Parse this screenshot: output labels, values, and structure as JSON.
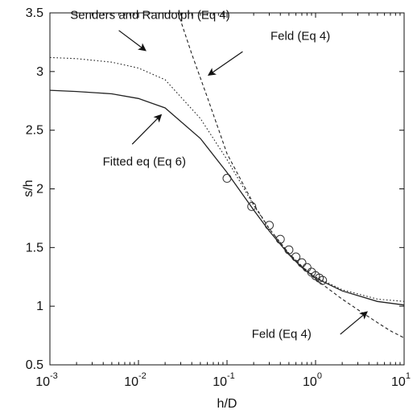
{
  "chart_data": {
    "type": "line",
    "xlabel": "h/D",
    "ylabel": "s/h",
    "xscale": "log",
    "xlim": [
      0.001,
      10
    ],
    "ylim": [
      0.5,
      3.5
    ],
    "grid": false,
    "legend": "none",
    "x_ticks": [
      {
        "value": 0.001,
        "base": "10",
        "exp": "-3"
      },
      {
        "value": 0.01,
        "base": "10",
        "exp": "-2"
      },
      {
        "value": 0.1,
        "base": "10",
        "exp": "-1"
      },
      {
        "value": 1,
        "base": "10",
        "exp": "0"
      },
      {
        "value": 10,
        "base": "10",
        "exp": "1"
      }
    ],
    "y_ticks": [
      "0.5",
      "1",
      "1.5",
      "2",
      "2.5",
      "3",
      "3.5"
    ],
    "series": [
      {
        "key": "senders",
        "style": "dotted",
        "x": [
          0.001,
          0.002,
          0.005,
          0.01,
          0.02,
          0.05,
          0.1,
          0.2,
          0.3,
          0.5,
          0.7,
          1,
          2,
          5,
          10
        ],
        "y": [
          3.12,
          3.11,
          3.08,
          3.03,
          2.93,
          2.6,
          2.25,
          1.86,
          1.66,
          1.45,
          1.34,
          1.25,
          1.14,
          1.06,
          1.04
        ]
      },
      {
        "key": "fitted",
        "style": "solid",
        "x": [
          0.001,
          0.002,
          0.005,
          0.01,
          0.02,
          0.05,
          0.1,
          0.2,
          0.3,
          0.5,
          0.7,
          1,
          2,
          5,
          10
        ],
        "y": [
          2.84,
          2.83,
          2.81,
          2.77,
          2.69,
          2.43,
          2.14,
          1.82,
          1.64,
          1.44,
          1.33,
          1.24,
          1.13,
          1.04,
          1.01
        ]
      },
      {
        "key": "feld",
        "style": "dashed",
        "x": [
          0.028,
          0.04,
          0.06,
          0.1,
          0.2,
          0.3,
          0.5,
          0.7,
          1,
          1.5,
          2,
          3,
          5,
          7,
          10
        ],
        "y": [
          3.5,
          3.15,
          2.78,
          2.3,
          1.87,
          1.66,
          1.45,
          1.34,
          1.23,
          1.13,
          1.06,
          0.97,
          0.86,
          0.79,
          0.73
        ]
      }
    ],
    "scatter": {
      "x": [
        0.1,
        0.19,
        0.3,
        0.4,
        0.5,
        0.6,
        0.7,
        0.8,
        0.9,
        1.0,
        1.1,
        1.2
      ],
      "y": [
        2.09,
        1.85,
        1.69,
        1.57,
        1.48,
        1.42,
        1.37,
        1.33,
        1.29,
        1.26,
        1.24,
        1.22
      ]
    },
    "annotations": [
      {
        "key": "senders",
        "text": "Senders and Randolph (Eq 4)",
        "tip": [
          0.012,
          3.18
        ],
        "tail": [
          0.006,
          3.35
        ],
        "anchor": [
          0.0017,
          3.45
        ],
        "align": "start"
      },
      {
        "key": "feld-top",
        "text": "Feld (Eq 4)",
        "tip": [
          0.062,
          2.97
        ],
        "tail": [
          0.15,
          3.17
        ],
        "anchor": [
          0.31,
          3.27
        ],
        "align": "start"
      },
      {
        "key": "fitted",
        "text": "Fitted eq (Eq 6)",
        "tip": [
          0.018,
          2.63
        ],
        "tail": [
          0.0085,
          2.38
        ],
        "anchor": [
          0.00395,
          2.2
        ],
        "align": "start"
      },
      {
        "key": "feld-bottom",
        "text": "Feld (Eq 4)",
        "tip": [
          3.8,
          0.95
        ],
        "tail": [
          1.9,
          0.76
        ],
        "anchor": [
          0.19,
          0.73
        ],
        "align": "start"
      }
    ]
  }
}
